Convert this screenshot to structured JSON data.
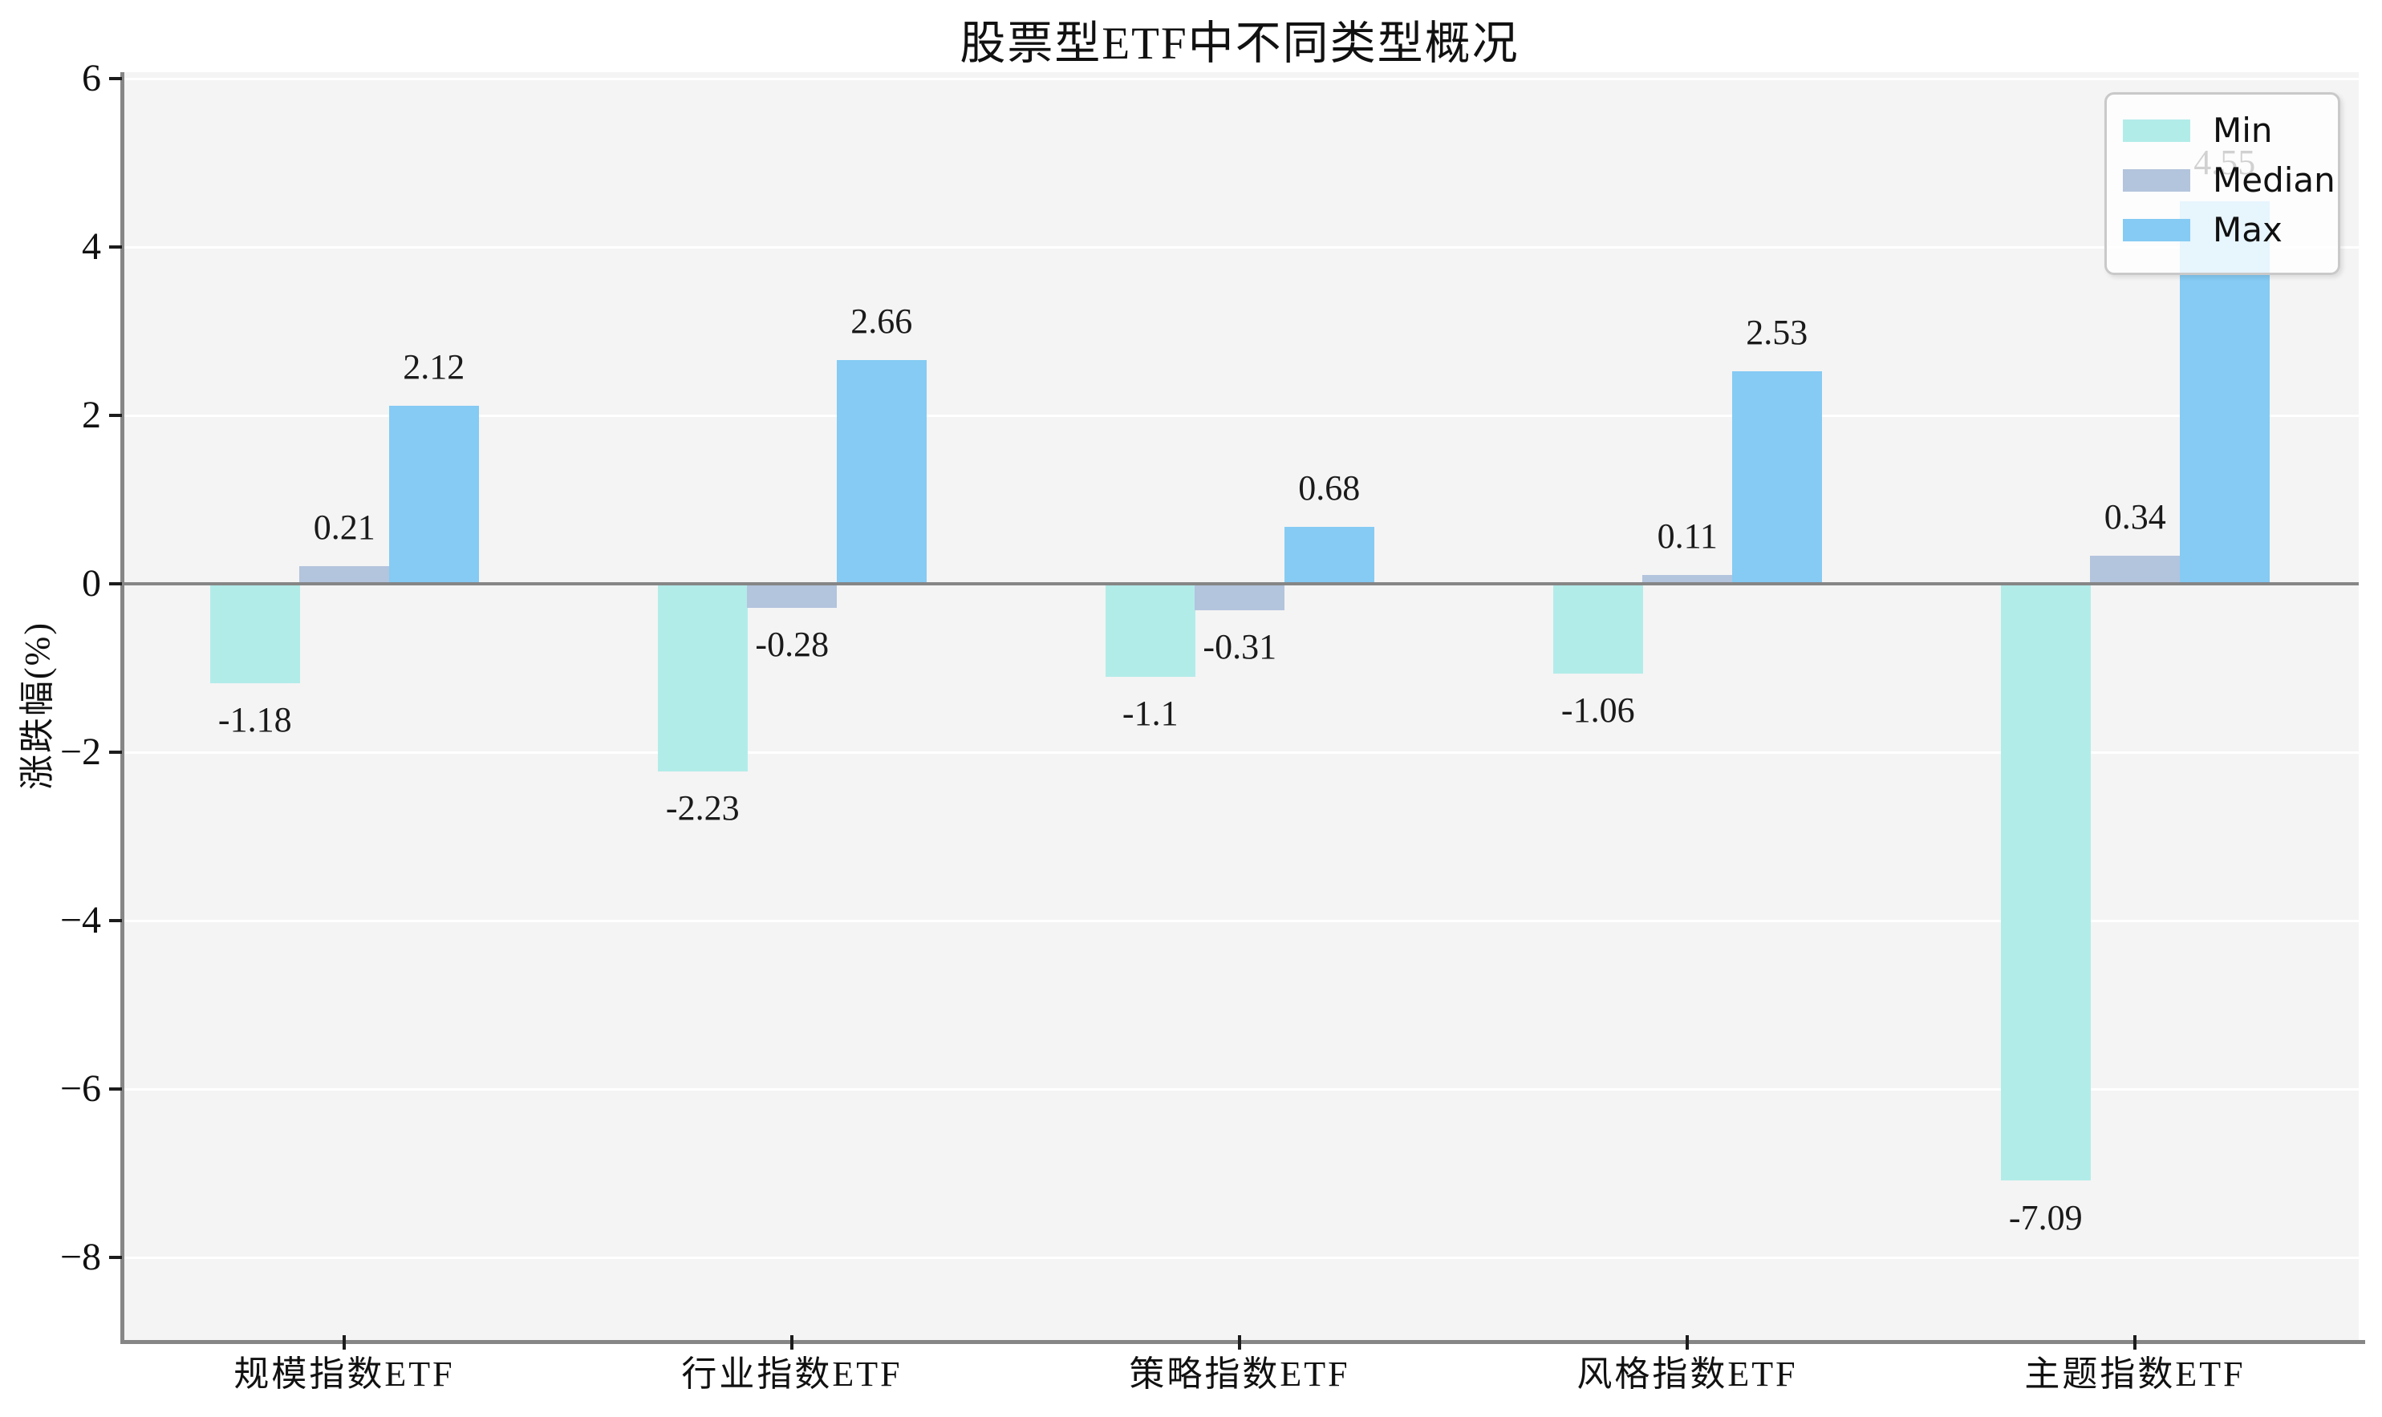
{
  "chart_data": {
    "type": "bar",
    "title": "股票型ETF中不同类型概况",
    "ylabel": "涨跌幅(%)",
    "categories": [
      "规模指数ETF",
      "行业指数ETF",
      "策略指数ETF",
      "风格指数ETF",
      "主题指数ETF"
    ],
    "series": [
      {
        "name": "Min",
        "color": "#b2ece9",
        "values": [
          -1.18,
          -2.23,
          -1.1,
          -1.06,
          -7.09
        ],
        "labels": [
          "-1.18",
          "-2.23",
          "-1.1",
          "-1.06",
          "-7.09"
        ]
      },
      {
        "name": "Median",
        "color": "#b3c4dd",
        "values": [
          0.21,
          -0.28,
          -0.31,
          0.11,
          0.34
        ],
        "labels": [
          "0.21",
          "-0.28",
          "-0.31",
          "0.11",
          "0.34"
        ]
      },
      {
        "name": "Max",
        "color": "#85cbf4",
        "values": [
          2.12,
          2.66,
          0.68,
          2.53,
          4.55
        ],
        "labels": [
          "2.12",
          "2.66",
          "0.68",
          "2.53",
          "4.55"
        ]
      }
    ],
    "yticks": [
      6,
      4,
      2,
      0,
      -2,
      -4,
      -6,
      -8
    ],
    "ytick_labels": [
      "6",
      "4",
      "2",
      "0",
      "−2",
      "−4",
      "−6",
      "−8"
    ],
    "ylim": [
      -9.0,
      6.08
    ],
    "grid": "horizontal",
    "legend": {
      "position": "upper-right",
      "entries": [
        "Min",
        "Median",
        "Max"
      ]
    },
    "colors": {
      "plot_bg": "#f4f4f4",
      "grid": "#ffffff",
      "axis": "#868686",
      "text": "#111111"
    }
  }
}
